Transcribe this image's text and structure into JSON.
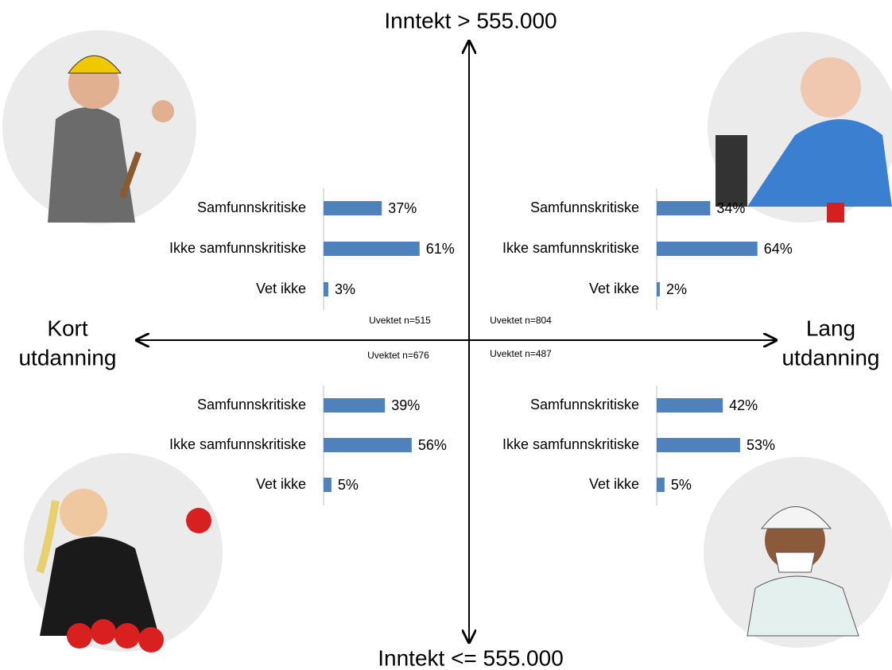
{
  "axes": {
    "top_label": "Inntekt > 555.000",
    "bottom_label": "Inntekt <= 555.000",
    "left_label": [
      "Kort",
      "utdanning"
    ],
    "right_label": [
      "Lang",
      "utdanning"
    ]
  },
  "chart_data": [
    {
      "type": "bar",
      "orientation": "horizontal",
      "quadrant": "top-left",
      "categories": [
        "Samfunnskritiske",
        "Ikke samfunnskritiske",
        "Vet ikke"
      ],
      "values": [
        37,
        61,
        3
      ],
      "value_labels": [
        "37%",
        "61%",
        "3%"
      ],
      "color": "#4f81bd",
      "annotation": "Uvektet n=515"
    },
    {
      "type": "bar",
      "orientation": "horizontal",
      "quadrant": "top-right",
      "categories": [
        "Samfunnskritiske",
        "Ikke samfunnskritiske",
        "Vet ikke"
      ],
      "values": [
        34,
        64,
        2
      ],
      "value_labels": [
        "34%",
        "64%",
        "2%"
      ],
      "color": "#4f81bd",
      "annotation": "Uvektet n=804"
    },
    {
      "type": "bar",
      "orientation": "horizontal",
      "quadrant": "bottom-left",
      "categories": [
        "Samfunnskritiske",
        "Ikke samfunnskritiske",
        "Vet ikke"
      ],
      "values": [
        39,
        56,
        5
      ],
      "value_labels": [
        "39%",
        "56%",
        "5%"
      ],
      "color": "#4f81bd",
      "annotation": "Uvektet n=676"
    },
    {
      "type": "bar",
      "orientation": "horizontal",
      "quadrant": "bottom-right",
      "categories": [
        "Samfunnskritiske",
        "Ikke samfunnskritiske",
        "Vet ikke"
      ],
      "values": [
        42,
        53,
        5
      ],
      "value_labels": [
        "42%",
        "53%",
        "5%"
      ],
      "color": "#4f81bd",
      "annotation": "Uvektet n=487"
    }
  ]
}
